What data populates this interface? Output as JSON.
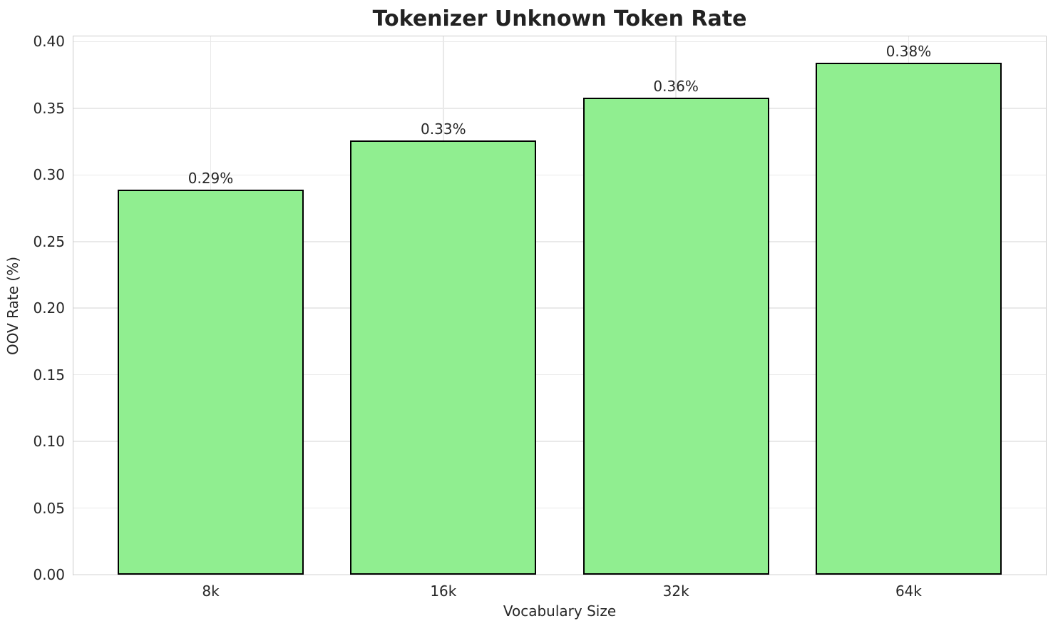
{
  "chart_data": {
    "type": "bar",
    "title": "Tokenizer Unknown Token Rate",
    "xlabel": "Vocabulary Size",
    "ylabel": "OOV Rate (%)",
    "categories": [
      "8k",
      "16k",
      "32k",
      "64k"
    ],
    "values": [
      0.289,
      0.326,
      0.358,
      0.384
    ],
    "bar_labels": [
      "0.29%",
      "0.33%",
      "0.36%",
      "0.38%"
    ],
    "yticks": [
      0.0,
      0.05,
      0.1,
      0.15,
      0.2,
      0.25,
      0.3,
      0.35,
      0.4
    ],
    "ytick_labels": [
      "0.00",
      "0.05",
      "0.10",
      "0.15",
      "0.20",
      "0.25",
      "0.30",
      "0.35",
      "0.40"
    ],
    "ylim": [
      0,
      0.404
    ],
    "xlim": [
      -0.59,
      3.59
    ],
    "bar_width_units": 0.8,
    "grid": "both",
    "legend": "none",
    "colors": {
      "bar_fill": "#90EE90",
      "bar_edge": "#000000",
      "grid": "#e9e9e9",
      "spine": "#cccccc",
      "text": "#262626",
      "background": "#ffffff"
    }
  }
}
